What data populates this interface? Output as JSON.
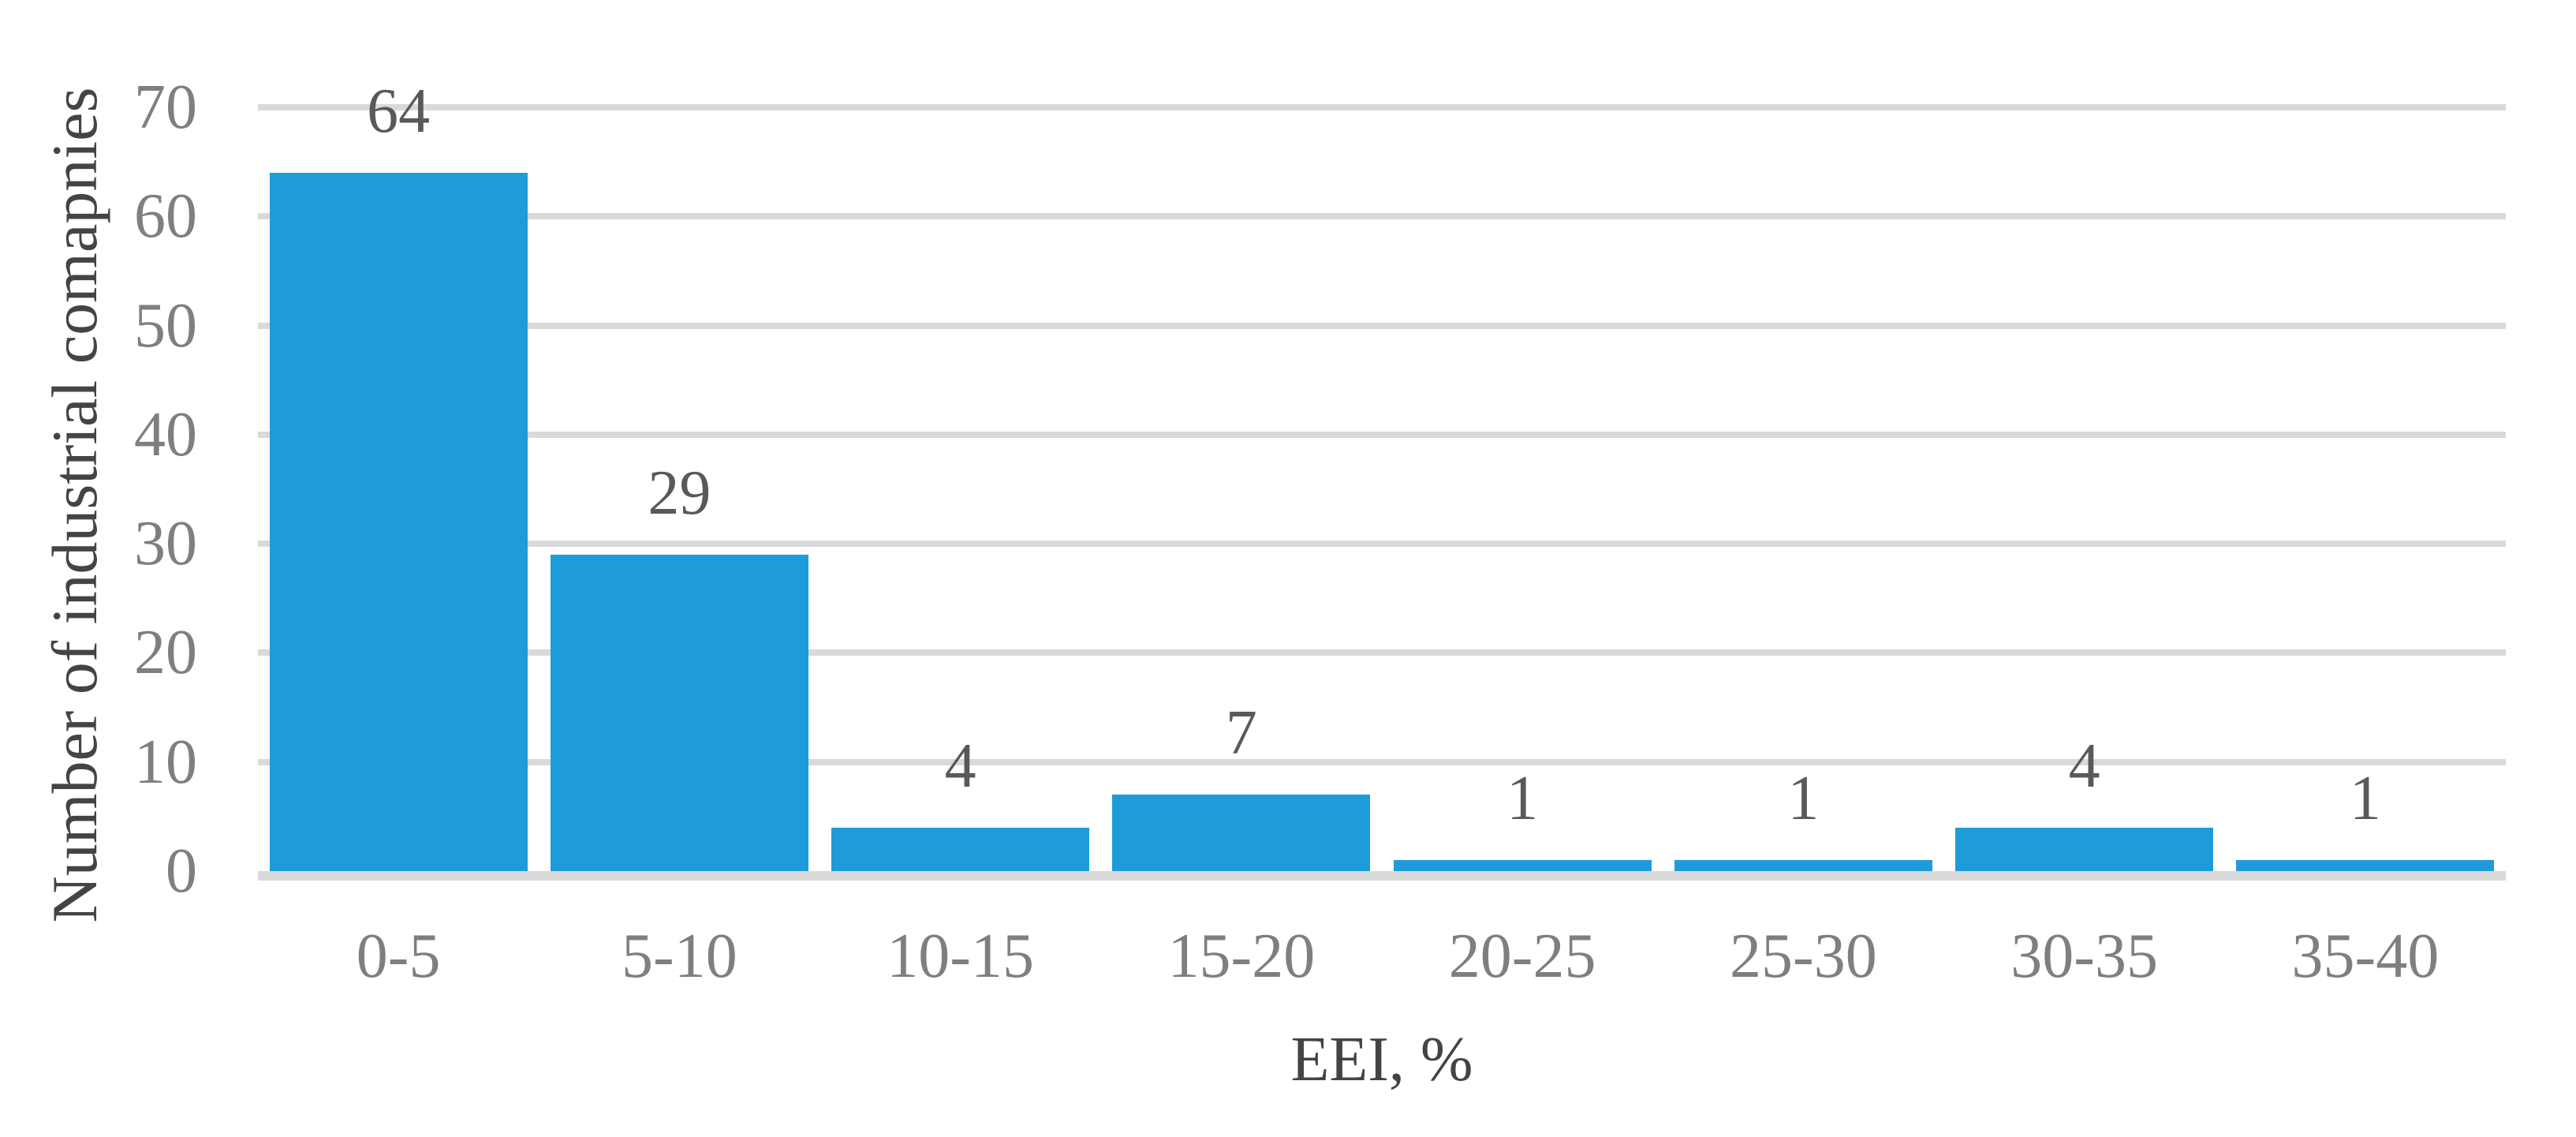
{
  "chart_data": {
    "type": "bar",
    "title": "",
    "categories": [
      "0-5",
      "5-10",
      "10-15",
      "15-20",
      "20-25",
      "25-30",
      "30-35",
      "35-40"
    ],
    "values": [
      64,
      29,
      4,
      7,
      1,
      1,
      4,
      1
    ],
    "data_labels": [
      "64",
      "29",
      "4",
      "7",
      "1",
      "1",
      "4",
      "1"
    ],
    "xlabel": "EEI, %",
    "ylabel": "Number of industrial comapnies",
    "ylim": [
      0,
      70
    ],
    "yticks": [
      0,
      10,
      20,
      30,
      40,
      50,
      60,
      70
    ],
    "grid": "horizontal-only",
    "legend_position": "none",
    "colors": {
      "bar": "#1E9CD9",
      "gridline": "#D9D9D9",
      "axis_line": "#D9D9D9",
      "tick_label": "#7F7F7F",
      "data_label": "#595959",
      "axis_title": "#444444",
      "background": "#FFFFFF"
    }
  }
}
